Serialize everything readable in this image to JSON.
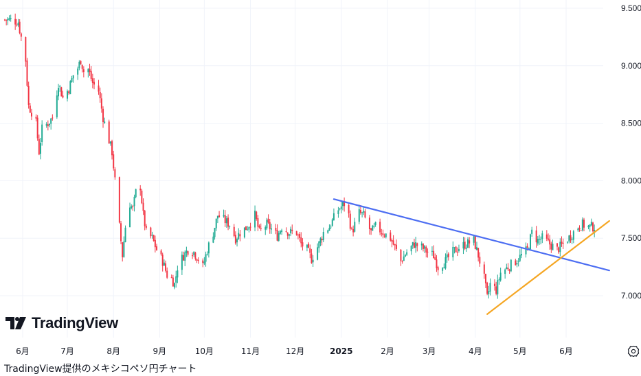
{
  "chart_data": {
    "type": "candlestick",
    "title": "",
    "xlabel": "",
    "ylabel": "",
    "ylim": [
      6.62,
      9.56
    ],
    "y_ticks": [
      "9.500",
      "9.000",
      "8.500",
      "8.000",
      "7.500",
      "7.000"
    ],
    "y_tick_values": [
      9.5,
      9.0,
      8.5,
      8.0,
      7.5,
      7.0
    ],
    "x_ticks": [
      {
        "label": "6月",
        "date": "2024-06-01",
        "bold": false
      },
      {
        "label": "7月",
        "date": "2024-07-01",
        "bold": false
      },
      {
        "label": "8月",
        "date": "2024-08-01",
        "bold": false
      },
      {
        "label": "9月",
        "date": "2024-09-01",
        "bold": false
      },
      {
        "label": "10月",
        "date": "2024-10-01",
        "bold": false
      },
      {
        "label": "11月",
        "date": "2024-11-01",
        "bold": false
      },
      {
        "label": "12月",
        "date": "2024-12-01",
        "bold": false
      },
      {
        "label": "2025",
        "date": "2025-01-01",
        "bold": true
      },
      {
        "label": "2月",
        "date": "2025-02-01",
        "bold": false
      },
      {
        "label": "3月",
        "date": "2025-03-01",
        "bold": false
      },
      {
        "label": "4月",
        "date": "2025-04-01",
        "bold": false
      },
      {
        "label": "5月",
        "date": "2025-05-01",
        "bold": false
      },
      {
        "label": "6月",
        "date": "2025-06-01",
        "bold": false
      }
    ],
    "date_range": [
      "2024-05-20",
      "2025-06-20"
    ],
    "grid": true,
    "price_path": [
      [
        "2024-05-20",
        9.4
      ],
      [
        "2024-05-24",
        9.4
      ],
      [
        "2024-05-29",
        9.38
      ],
      [
        "2024-06-03",
        9.05
      ],
      [
        "2024-06-05",
        8.65
      ],
      [
        "2024-06-07",
        8.6
      ],
      [
        "2024-06-10",
        8.5
      ],
      [
        "2024-06-12",
        8.25
      ],
      [
        "2024-06-14",
        8.45
      ],
      [
        "2024-06-18",
        8.5
      ],
      [
        "2024-06-21",
        8.55
      ],
      [
        "2024-06-25",
        8.85
      ],
      [
        "2024-06-28",
        8.72
      ],
      [
        "2024-07-02",
        8.8
      ],
      [
        "2024-07-05",
        8.92
      ],
      [
        "2024-07-08",
        8.98
      ],
      [
        "2024-07-10",
        9.05
      ],
      [
        "2024-07-12",
        8.95
      ],
      [
        "2024-07-15",
        8.97
      ],
      [
        "2024-07-18",
        8.85
      ],
      [
        "2024-07-22",
        8.78
      ],
      [
        "2024-07-25",
        8.55
      ],
      [
        "2024-07-29",
        8.35
      ],
      [
        "2024-07-31",
        8.25
      ],
      [
        "2024-08-02",
        8.0
      ],
      [
        "2024-08-05",
        7.6
      ],
      [
        "2024-08-07",
        7.35
      ],
      [
        "2024-08-09",
        7.6
      ],
      [
        "2024-08-12",
        7.8
      ],
      [
        "2024-08-14",
        7.75
      ],
      [
        "2024-08-16",
        7.9
      ],
      [
        "2024-08-19",
        7.95
      ],
      [
        "2024-08-21",
        7.7
      ],
      [
        "2024-08-23",
        7.55
      ],
      [
        "2024-08-27",
        7.5
      ],
      [
        "2024-08-30",
        7.4
      ],
      [
        "2024-09-03",
        7.3
      ],
      [
        "2024-09-06",
        7.18
      ],
      [
        "2024-09-09",
        7.15
      ],
      [
        "2024-09-11",
        7.1
      ],
      [
        "2024-09-13",
        7.25
      ],
      [
        "2024-09-17",
        7.35
      ],
      [
        "2024-09-20",
        7.4
      ],
      [
        "2024-09-24",
        7.38
      ],
      [
        "2024-09-27",
        7.32
      ],
      [
        "2024-09-30",
        7.25
      ],
      [
        "2024-10-03",
        7.4
      ],
      [
        "2024-10-07",
        7.55
      ],
      [
        "2024-10-10",
        7.7
      ],
      [
        "2024-10-15",
        7.65
      ],
      [
        "2024-10-18",
        7.62
      ],
      [
        "2024-10-22",
        7.5
      ],
      [
        "2024-10-25",
        7.55
      ],
      [
        "2024-10-30",
        7.6
      ],
      [
        "2024-11-04",
        7.7
      ],
      [
        "2024-11-07",
        7.55
      ],
      [
        "2024-11-12",
        7.62
      ],
      [
        "2024-11-15",
        7.58
      ],
      [
        "2024-11-19",
        7.52
      ],
      [
        "2024-11-22",
        7.6
      ],
      [
        "2024-11-27",
        7.55
      ],
      [
        "2024-12-02",
        7.55
      ],
      [
        "2024-12-05",
        7.45
      ],
      [
        "2024-12-09",
        7.4
      ],
      [
        "2024-12-12",
        7.32
      ],
      [
        "2024-12-17",
        7.45
      ],
      [
        "2024-12-20",
        7.55
      ],
      [
        "2024-12-24",
        7.6
      ],
      [
        "2024-12-30",
        7.75
      ],
      [
        "2025-01-03",
        7.8
      ],
      [
        "2025-01-06",
        7.7
      ],
      [
        "2025-01-08",
        7.55
      ],
      [
        "2025-01-13",
        7.72
      ],
      [
        "2025-01-16",
        7.7
      ],
      [
        "2025-01-21",
        7.55
      ],
      [
        "2025-01-24",
        7.6
      ],
      [
        "2025-01-29",
        7.55
      ],
      [
        "2025-02-03",
        7.5
      ],
      [
        "2025-02-06",
        7.42
      ],
      [
        "2025-02-10",
        7.3
      ],
      [
        "2025-02-14",
        7.38
      ],
      [
        "2025-02-19",
        7.45
      ],
      [
        "2025-02-24",
        7.42
      ],
      [
        "2025-02-28",
        7.38
      ],
      [
        "2025-03-04",
        7.35
      ],
      [
        "2025-03-07",
        7.25
      ],
      [
        "2025-03-12",
        7.3
      ],
      [
        "2025-03-17",
        7.38
      ],
      [
        "2025-03-21",
        7.42
      ],
      [
        "2025-03-26",
        7.45
      ],
      [
        "2025-03-31",
        7.48
      ],
      [
        "2025-04-03",
        7.35
      ],
      [
        "2025-04-07",
        7.15
      ],
      [
        "2025-04-09",
        6.98
      ],
      [
        "2025-04-11",
        7.1
      ],
      [
        "2025-04-15",
        7.05
      ],
      [
        "2025-04-18",
        7.2
      ],
      [
        "2025-04-23",
        7.25
      ],
      [
        "2025-04-28",
        7.3
      ],
      [
        "2025-05-02",
        7.35
      ],
      [
        "2025-05-06",
        7.4
      ],
      [
        "2025-05-09",
        7.55
      ],
      [
        "2025-05-13",
        7.48
      ],
      [
        "2025-05-16",
        7.5
      ],
      [
        "2025-05-21",
        7.45
      ],
      [
        "2025-05-26",
        7.4
      ],
      [
        "2025-05-30",
        7.45
      ],
      [
        "2025-06-04",
        7.52
      ],
      [
        "2025-06-09",
        7.6
      ],
      [
        "2025-06-12",
        7.62
      ],
      [
        "2025-06-16",
        7.6
      ]
    ],
    "trendlines": [
      {
        "color": "#4d6ef2",
        "points": [
          [
            "2024-12-27",
            7.84
          ],
          [
            "2025-06-30",
            7.22
          ]
        ]
      },
      {
        "color": "#f5a623",
        "points": [
          [
            "2025-04-09",
            6.84
          ],
          [
            "2025-06-30",
            7.65
          ]
        ]
      }
    ],
    "up_color": "#22ab94",
    "down_color": "#f23645"
  },
  "logo": {
    "text": "TradingView"
  },
  "caption": "TradingView提供のメキシコペソ円チャート",
  "settings": {
    "icon": "gear-icon"
  }
}
